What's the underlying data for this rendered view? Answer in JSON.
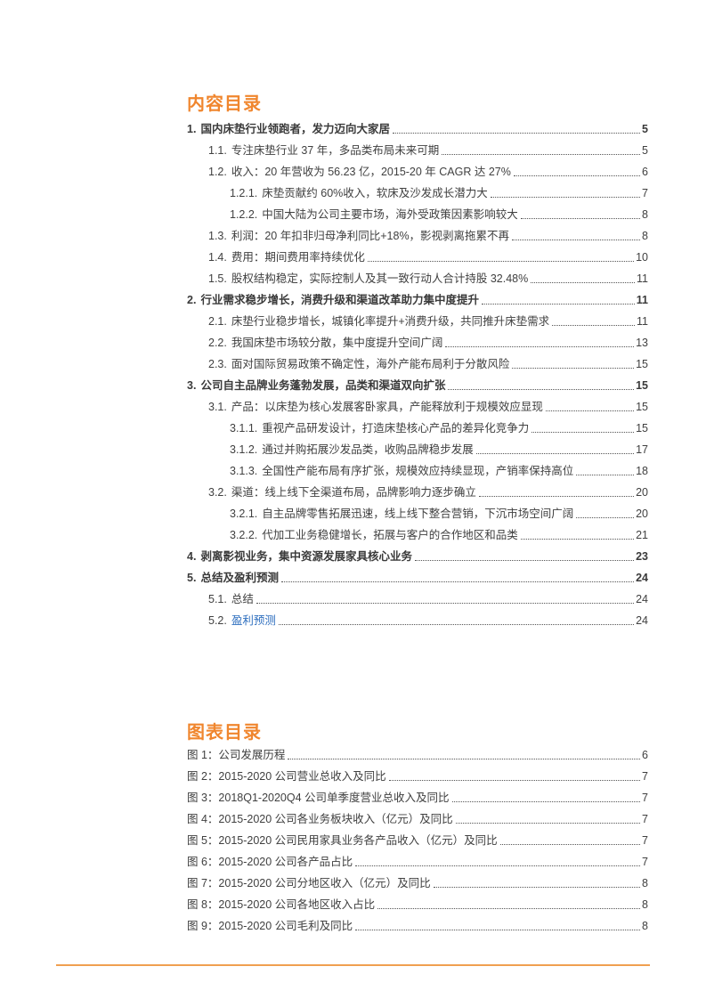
{
  "toc_title": "内容目录",
  "toc": [
    {
      "level": 1,
      "num": "1.",
      "title": "国内床垫行业领跑者，发力迈向大家居",
      "page": "5"
    },
    {
      "level": 2,
      "num": "1.1.",
      "title": "专注床垫行业 37 年，多品类布局未来可期",
      "page": "5"
    },
    {
      "level": 2,
      "num": "1.2.",
      "title": "收入：20 年营收为 56.23 亿，2015-20 年 CAGR 达 27%",
      "page": "6"
    },
    {
      "level": 3,
      "num": "1.2.1.",
      "title": "床垫贡献约 60%收入，软床及沙发成长潜力大",
      "page": "7"
    },
    {
      "level": 3,
      "num": "1.2.2.",
      "title": "中国大陆为公司主要市场，海外受政策因素影响较大",
      "page": "8"
    },
    {
      "level": 2,
      "num": "1.3.",
      "title": "利润：20 年扣非归母净利同比+18%，影视剥离拖累不再",
      "page": "8"
    },
    {
      "level": 2,
      "num": "1.4.",
      "title": "费用：期间费用率持续优化",
      "page": "10"
    },
    {
      "level": 2,
      "num": "1.5.",
      "title": "股权结构稳定，实际控制人及其一致行动人合计持股 32.48%",
      "page": "11"
    },
    {
      "level": 1,
      "num": "2.",
      "title": "行业需求稳步增长，消费升级和渠道改革助力集中度提升",
      "page": "11"
    },
    {
      "level": 2,
      "num": "2.1.",
      "title": "床垫行业稳步增长，城镇化率提升+消费升级，共同推升床垫需求",
      "page": "11"
    },
    {
      "level": 2,
      "num": "2.2.",
      "title": "我国床垫市场较分散，集中度提升空间广阔",
      "page": "13"
    },
    {
      "level": 2,
      "num": "2.3.",
      "title": "面对国际贸易政策不确定性，海外产能布局利于分散风险",
      "page": "15"
    },
    {
      "level": 1,
      "num": "3.",
      "title": "公司自主品牌业务蓬勃发展，品类和渠道双向扩张",
      "page": "15"
    },
    {
      "level": 2,
      "num": "3.1.",
      "title": "产品：以床垫为核心发展客卧家具，产能释放利于规模效应显现",
      "page": "15"
    },
    {
      "level": 3,
      "num": "3.1.1.",
      "title": "重视产品研发设计，打造床垫核心产品的差异化竞争力",
      "page": "15"
    },
    {
      "level": 3,
      "num": "3.1.2.",
      "title": "通过并购拓展沙发品类，收购品牌稳步发展",
      "page": "17"
    },
    {
      "level": 3,
      "num": "3.1.3.",
      "title": "全国性产能布局有序扩张，规模效应持续显现，产销率保持高位",
      "page": "18"
    },
    {
      "level": 2,
      "num": "3.2.",
      "title": "渠道：线上线下全渠道布局，品牌影响力逐步确立",
      "page": "20"
    },
    {
      "level": 3,
      "num": "3.2.1.",
      "title": "自主品牌零售拓展迅速，线上线下整合营销，下沉市场空间广阔",
      "page": "20"
    },
    {
      "level": 3,
      "num": "3.2.2.",
      "title": "代加工业务稳健增长，拓展与客户的合作地区和品类",
      "page": "21"
    },
    {
      "level": 1,
      "num": "4.",
      "title": "剥离影视业务，集中资源发展家具核心业务",
      "page": "23"
    },
    {
      "level": 1,
      "num": "5.",
      "title": "总结及盈利预测",
      "page": "24"
    },
    {
      "level": 2,
      "num": "5.1.",
      "title": "总结",
      "page": "24"
    },
    {
      "level": 2,
      "num": "5.2.",
      "title": "盈利预测",
      "page": "24",
      "link": true
    }
  ],
  "figures_title": "图表目录",
  "figures": [
    {
      "title": "图 1：公司发展历程",
      "page": "6"
    },
    {
      "title": "图 2：2015-2020 公司营业总收入及同比",
      "page": "7"
    },
    {
      "title": "图 3：2018Q1-2020Q4 公司单季度营业总收入及同比",
      "page": "7"
    },
    {
      "title": "图 4：2015-2020 公司各业务板块收入（亿元）及同比",
      "page": "7"
    },
    {
      "title": "图 5：2015-2020 公司民用家具业务各产品收入（亿元）及同比",
      "page": "7"
    },
    {
      "title": "图 6：2015-2020 公司各产品占比",
      "page": "7"
    },
    {
      "title": "图 7：2015-2020 公司分地区收入（亿元）及同比",
      "page": "8"
    },
    {
      "title": "图 8：2015-2020 公司各地区收入占比",
      "page": "8"
    },
    {
      "title": "图 9：2015-2020 公司毛利及同比",
      "page": "8"
    }
  ],
  "colors": {
    "accent": "#f0862e",
    "rule": "#f0a050",
    "link": "#2f6fbf"
  }
}
